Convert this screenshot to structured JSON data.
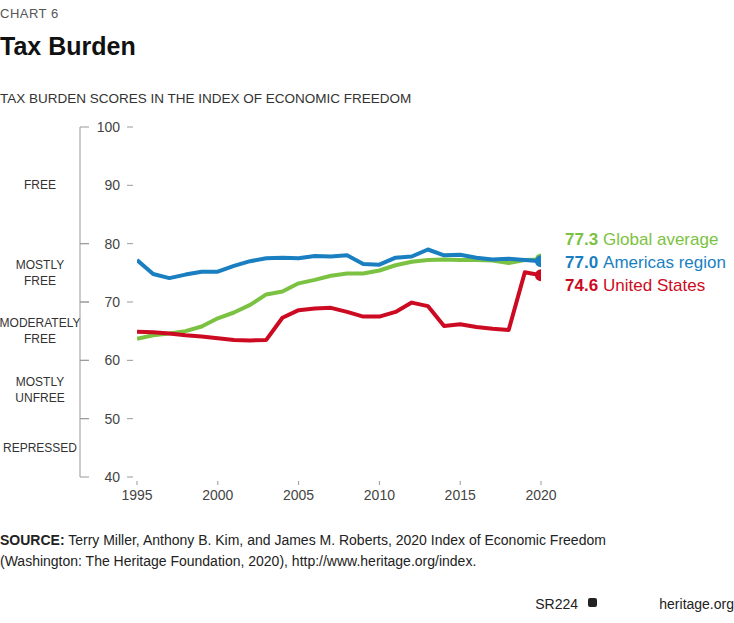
{
  "chart_data": {
    "type": "line",
    "kicker": "CHART 6",
    "title": "Tax Burden",
    "subtitle": "TAX BURDEN SCORES IN THE INDEX OF ECONOMIC FREEDOM",
    "x": [
      1995,
      1996,
      1997,
      1998,
      1999,
      2000,
      2001,
      2002,
      2003,
      2004,
      2005,
      2006,
      2007,
      2008,
      2009,
      2010,
      2011,
      2012,
      2013,
      2014,
      2015,
      2016,
      2017,
      2018,
      2019,
      2020
    ],
    "series": [
      {
        "name": "Global average",
        "color": "#7cc242",
        "end_label": "77.3",
        "values": [
          63.7,
          64.3,
          64.6,
          65.0,
          65.8,
          67.2,
          68.2,
          69.5,
          71.3,
          71.8,
          73.2,
          73.8,
          74.5,
          74.9,
          74.9,
          75.4,
          76.3,
          76.9,
          77.2,
          77.3,
          77.2,
          77.2,
          77.1,
          76.7,
          77.2,
          77.3
        ]
      },
      {
        "name": "Americas region",
        "color": "#1a7fc1",
        "end_label": "77.0",
        "values": [
          77.2,
          74.8,
          74.1,
          74.7,
          75.2,
          75.2,
          76.2,
          77.0,
          77.5,
          77.6,
          77.5,
          77.9,
          77.8,
          78.0,
          76.5,
          76.4,
          77.6,
          77.8,
          79.0,
          78.0,
          78.1,
          77.6,
          77.3,
          77.4,
          77.2,
          77.0
        ]
      },
      {
        "name": "United States",
        "color": "#cc0a21",
        "end_label": "74.6",
        "values": [
          64.9,
          64.8,
          64.6,
          64.3,
          64.1,
          63.8,
          63.5,
          63.4,
          63.5,
          67.3,
          68.6,
          68.9,
          69.0,
          68.3,
          67.5,
          67.5,
          68.3,
          69.9,
          69.3,
          65.9,
          66.2,
          65.7,
          65.4,
          65.2,
          75.1,
          74.6
        ]
      }
    ],
    "xlim": [
      1995,
      2020
    ],
    "xticks": [
      1995,
      2000,
      2005,
      2010,
      2015,
      2020
    ],
    "ylim": [
      40,
      100
    ],
    "yticks": [
      40,
      50,
      60,
      70,
      80,
      90,
      100
    ],
    "grid": false,
    "bands": [
      {
        "label": "FREE",
        "from": 80,
        "to": 100
      },
      {
        "label": "MOSTLY FREE",
        "from": 70,
        "to": 80
      },
      {
        "label": "MODERATELY FREE",
        "from": 60,
        "to": 70
      },
      {
        "label": "MOSTLY UNFREE",
        "from": 50,
        "to": 60
      },
      {
        "label": "REPRESSED",
        "from": 40,
        "to": 50
      }
    ],
    "source_label": "SOURCE:",
    "source": "Terry Miller, Anthony B. Kim, and James M. Roberts, 2020 Index of Economic Freedom (Washington: The Heritage Foundation, 2020), http://www.heritage.org/index.",
    "report": "SR224",
    "site": "heritage.org"
  }
}
